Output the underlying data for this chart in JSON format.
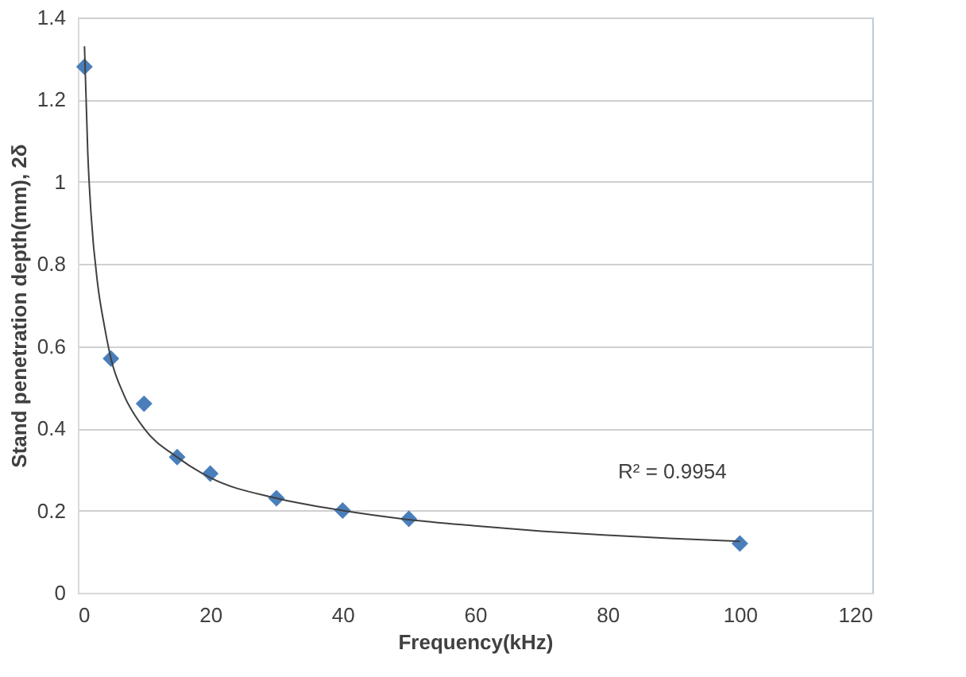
{
  "chart_data": {
    "type": "scatter",
    "xlabel": "Frequency(kHz)",
    "ylabel": "Stand  penetration depth(mm), 2δ",
    "series": [
      {
        "color": "#4a7ebb",
        "marker": "diamond",
        "x": [
          1,
          5,
          10,
          15,
          20,
          30,
          40,
          50,
          100
        ],
        "values": [
          1.28,
          0.57,
          0.46,
          0.33,
          0.29,
          0.23,
          0.2,
          0.18,
          0.12
        ]
      },
      {
        "type": "line",
        "color": "#404040",
        "marker": "none",
        "line_style": "solid",
        "x": [
          1,
          1.5,
          2,
          3,
          4,
          5,
          7,
          10,
          15,
          20,
          30,
          40,
          50,
          60,
          70,
          80,
          90,
          100
        ],
        "values": [
          1.33,
          1.07,
          0.92,
          0.75,
          0.65,
          0.57,
          0.48,
          0.4,
          0.33,
          0.28,
          0.23,
          0.2,
          0.178,
          0.163,
          0.15,
          0.14,
          0.132,
          0.125
        ]
      }
    ],
    "annotations": [
      "R² = 0.9954"
    ],
    "xlim": [
      0,
      120
    ],
    "xticks": [
      0,
      20,
      40,
      60,
      80,
      100,
      120
    ],
    "ylim": [
      0,
      1.4
    ],
    "yticks": [
      0,
      0.2,
      0.4,
      0.6,
      0.8,
      1,
      1.2,
      1.4
    ],
    "grid": "y"
  }
}
